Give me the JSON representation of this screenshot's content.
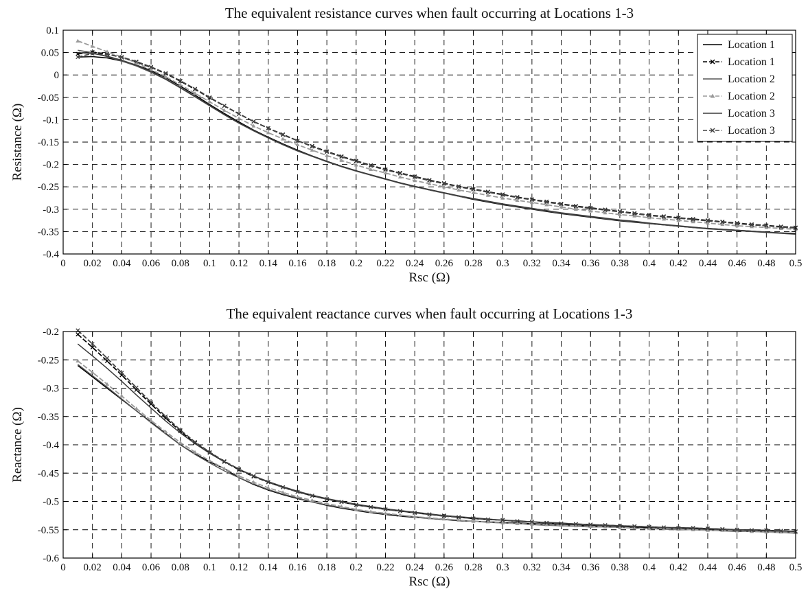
{
  "chart_data": [
    {
      "type": "line",
      "title": "The equivalent resistance curves when fault occurring at Locations 1-3",
      "xlabel": "Rsc (Ω)",
      "ylabel": "Resistance (Ω)",
      "xlim": [
        0,
        0.5
      ],
      "ylim": [
        -0.4,
        0.1
      ],
      "xticks": [
        0,
        0.02,
        0.04,
        0.06,
        0.08,
        0.1,
        0.12,
        0.14,
        0.16,
        0.18,
        0.2,
        0.22,
        0.24,
        0.26,
        0.28,
        0.3,
        0.32,
        0.34,
        0.36,
        0.38,
        0.4,
        0.42,
        0.44,
        0.46,
        0.48,
        0.5
      ],
      "xtick_labels": [
        "0",
        "0.02",
        "0.04",
        "0.06",
        "0.08",
        "0.1",
        "0.12",
        "0.14",
        "0.16",
        "0.18",
        "0.2",
        "0.22",
        "0.24",
        "0.26",
        "0.28",
        "0.3",
        "0.32",
        "0.34",
        "0.36",
        "0.38",
        "0.4",
        "0.42",
        "0.44",
        "0.46",
        "0.48",
        "0.5"
      ],
      "yticks": [
        0.1,
        0.05,
        0,
        -0.05,
        -0.1,
        -0.15,
        -0.2,
        -0.25,
        -0.3,
        -0.35,
        -0.4
      ],
      "ytick_labels": [
        "0.1",
        "0.05",
        "0",
        "-0.05",
        "-0.1",
        "-0.15",
        "-0.2",
        "-0.25",
        "-0.3",
        "-0.35",
        "-0.4"
      ],
      "grid": true,
      "legend_position": "top-right",
      "x": [
        0.01,
        0.02,
        0.03,
        0.04,
        0.05,
        0.06,
        0.07,
        0.08,
        0.09,
        0.1,
        0.11,
        0.12,
        0.13,
        0.14,
        0.15,
        0.16,
        0.17,
        0.18,
        0.19,
        0.2,
        0.21,
        0.22,
        0.23,
        0.24,
        0.25,
        0.26,
        0.27,
        0.28,
        0.29,
        0.3,
        0.31,
        0.32,
        0.33,
        0.34,
        0.35,
        0.36,
        0.37,
        0.38,
        0.39,
        0.4,
        0.41,
        0.42,
        0.43,
        0.44,
        0.45,
        0.46,
        0.47,
        0.48,
        0.49,
        0.5
      ],
      "series": [
        {
          "name": "Location 1",
          "color": "#000000",
          "style": "solid",
          "marker": "none",
          "values": [
            0.04,
            0.041,
            0.038,
            0.031,
            0.022,
            0.01,
            -0.006,
            -0.025,
            -0.045,
            -0.066,
            -0.086,
            -0.105,
            -0.123,
            -0.139,
            -0.154,
            -0.168,
            -0.181,
            -0.193,
            -0.204,
            -0.214,
            -0.224,
            -0.233,
            -0.241,
            -0.249,
            -0.257,
            -0.264,
            -0.271,
            -0.278,
            -0.284,
            -0.29,
            -0.295,
            -0.3,
            -0.305,
            -0.31,
            -0.314,
            -0.318,
            -0.322,
            -0.326,
            -0.329,
            -0.332,
            -0.335,
            -0.338,
            -0.341,
            -0.343,
            -0.345,
            -0.347,
            -0.349,
            -0.351,
            -0.353,
            -0.354
          ]
        },
        {
          "name": "Location 1",
          "color": "#000000",
          "style": "dashed",
          "marker": "x",
          "values": [
            0.047,
            0.051,
            0.047,
            0.039,
            0.029,
            0.017,
            0.003,
            -0.014,
            -0.032,
            -0.051,
            -0.069,
            -0.087,
            -0.104,
            -0.119,
            -0.133,
            -0.147,
            -0.159,
            -0.171,
            -0.182,
            -0.192,
            -0.202,
            -0.211,
            -0.219,
            -0.227,
            -0.235,
            -0.242,
            -0.249,
            -0.255,
            -0.261,
            -0.267,
            -0.273,
            -0.278,
            -0.283,
            -0.288,
            -0.293,
            -0.297,
            -0.301,
            -0.305,
            -0.309,
            -0.313,
            -0.316,
            -0.319,
            -0.322,
            -0.325,
            -0.328,
            -0.331,
            -0.334,
            -0.336,
            -0.339,
            -0.341
          ]
        },
        {
          "name": "Location 2",
          "color": "#555555",
          "style": "solid",
          "marker": "none",
          "values": [
            0.055,
            0.05,
            0.041,
            0.031,
            0.02,
            0.006,
            -0.01,
            -0.029,
            -0.049,
            -0.069,
            -0.089,
            -0.108,
            -0.125,
            -0.141,
            -0.156,
            -0.17,
            -0.182,
            -0.194,
            -0.205,
            -0.215,
            -0.224,
            -0.233,
            -0.242,
            -0.25,
            -0.257,
            -0.264,
            -0.271,
            -0.277,
            -0.283,
            -0.289,
            -0.294,
            -0.299,
            -0.304,
            -0.309,
            -0.313,
            -0.317,
            -0.321,
            -0.325,
            -0.328,
            -0.332,
            -0.335,
            -0.338,
            -0.341,
            -0.344,
            -0.346,
            -0.348,
            -0.35,
            -0.352,
            -0.354,
            -0.356
          ]
        },
        {
          "name": "Location 2",
          "color": "#9a9a9a",
          "style": "dashed",
          "marker": "triangle",
          "values": [
            0.076,
            0.064,
            0.052,
            0.04,
            0.027,
            0.012,
            -0.004,
            -0.022,
            -0.041,
            -0.06,
            -0.079,
            -0.097,
            -0.114,
            -0.129,
            -0.143,
            -0.156,
            -0.168,
            -0.18,
            -0.191,
            -0.201,
            -0.211,
            -0.219,
            -0.228,
            -0.236,
            -0.243,
            -0.25,
            -0.257,
            -0.263,
            -0.269,
            -0.275,
            -0.28,
            -0.285,
            -0.29,
            -0.295,
            -0.3,
            -0.304,
            -0.308,
            -0.312,
            -0.315,
            -0.319,
            -0.322,
            -0.325,
            -0.328,
            -0.331,
            -0.334,
            -0.337,
            -0.339,
            -0.341,
            -0.343,
            -0.345
          ]
        },
        {
          "name": "Location 3",
          "color": "#3a3a3a",
          "style": "solid",
          "marker": "none",
          "values": [
            0.05,
            0.048,
            0.042,
            0.033,
            0.022,
            0.008,
            -0.009,
            -0.028,
            -0.048,
            -0.068,
            -0.088,
            -0.107,
            -0.124,
            -0.14,
            -0.155,
            -0.169,
            -0.181,
            -0.193,
            -0.204,
            -0.214,
            -0.223,
            -0.232,
            -0.241,
            -0.249,
            -0.256,
            -0.263,
            -0.27,
            -0.276,
            -0.282,
            -0.288,
            -0.293,
            -0.298,
            -0.303,
            -0.308,
            -0.312,
            -0.316,
            -0.32,
            -0.324,
            -0.327,
            -0.331,
            -0.334,
            -0.337,
            -0.34,
            -0.343,
            -0.345,
            -0.347,
            -0.349,
            -0.351,
            -0.353,
            -0.355
          ]
        },
        {
          "name": "Location 3",
          "color": "#444444",
          "style": "dashed",
          "marker": "x",
          "values": [
            0.04,
            0.048,
            0.046,
            0.04,
            0.03,
            0.018,
            0.004,
            -0.013,
            -0.031,
            -0.05,
            -0.069,
            -0.087,
            -0.104,
            -0.119,
            -0.134,
            -0.147,
            -0.16,
            -0.172,
            -0.183,
            -0.193,
            -0.203,
            -0.212,
            -0.22,
            -0.228,
            -0.236,
            -0.243,
            -0.25,
            -0.256,
            -0.262,
            -0.268,
            -0.274,
            -0.279,
            -0.284,
            -0.289,
            -0.294,
            -0.298,
            -0.302,
            -0.306,
            -0.31,
            -0.314,
            -0.317,
            -0.32,
            -0.323,
            -0.326,
            -0.329,
            -0.332,
            -0.335,
            -0.337,
            -0.34,
            -0.342
          ]
        }
      ]
    },
    {
      "type": "line",
      "title": "The equivalent reactance curves when fault occurring at Locations 1-3",
      "xlabel": "Rsc (Ω)",
      "ylabel": "Reactance (Ω)",
      "xlim": [
        0,
        0.5
      ],
      "ylim": [
        -0.6,
        -0.2
      ],
      "xticks": [
        0,
        0.02,
        0.04,
        0.06,
        0.08,
        0.1,
        0.12,
        0.14,
        0.16,
        0.18,
        0.2,
        0.22,
        0.24,
        0.26,
        0.28,
        0.3,
        0.32,
        0.34,
        0.36,
        0.38,
        0.4,
        0.42,
        0.44,
        0.46,
        0.48,
        0.5
      ],
      "xtick_labels": [
        "0",
        "0.02",
        "0.04",
        "0.06",
        "0.08",
        "0.1",
        "0.12",
        "0.14",
        "0.16",
        "0.18",
        "0.2",
        "0.22",
        "0.24",
        "0.26",
        "0.28",
        "0.3",
        "0.32",
        "0.34",
        "0.36",
        "0.38",
        "0.4",
        "0.42",
        "0.44",
        "0.46",
        "0.48",
        "0.5"
      ],
      "yticks": [
        -0.2,
        -0.25,
        -0.3,
        -0.35,
        -0.4,
        -0.45,
        -0.5,
        -0.55,
        -0.6
      ],
      "ytick_labels": [
        "-0.2",
        "-0.25",
        "-0.3",
        "-0.35",
        "-0.4",
        "-0.45",
        "-0.5",
        "-0.55",
        "-0.6"
      ],
      "grid": true,
      "x": [
        0.01,
        0.02,
        0.03,
        0.04,
        0.05,
        0.06,
        0.07,
        0.08,
        0.09,
        0.1,
        0.11,
        0.12,
        0.13,
        0.14,
        0.15,
        0.16,
        0.17,
        0.18,
        0.19,
        0.2,
        0.21,
        0.22,
        0.23,
        0.24,
        0.25,
        0.26,
        0.27,
        0.28,
        0.29,
        0.3,
        0.31,
        0.32,
        0.33,
        0.34,
        0.35,
        0.36,
        0.37,
        0.38,
        0.39,
        0.4,
        0.41,
        0.42,
        0.43,
        0.44,
        0.45,
        0.46,
        0.47,
        0.48,
        0.49,
        0.5
      ],
      "series": [
        {
          "name": "Location 1",
          "color": "#000000",
          "style": "solid",
          "marker": "none",
          "values": [
            -0.26,
            -0.28,
            -0.3,
            -0.32,
            -0.34,
            -0.36,
            -0.38,
            -0.4,
            -0.416,
            -0.43,
            -0.442,
            -0.458,
            -0.47,
            -0.48,
            -0.488,
            -0.495,
            -0.501,
            -0.507,
            -0.512,
            -0.516,
            -0.52,
            -0.523,
            -0.526,
            -0.528,
            -0.53,
            -0.532,
            -0.534,
            -0.535,
            -0.536,
            -0.537,
            -0.538,
            -0.539,
            -0.54,
            -0.541,
            -0.542,
            -0.543,
            -0.544,
            -0.545,
            -0.546,
            -0.546,
            -0.547,
            -0.548,
            -0.549,
            -0.549,
            -0.55,
            -0.551,
            -0.552,
            -0.552,
            -0.553,
            -0.554
          ]
        },
        {
          "name": "Location 1",
          "color": "#000000",
          "style": "dashed",
          "marker": "x",
          "values": [
            -0.205,
            -0.228,
            -0.252,
            -0.277,
            -0.303,
            -0.328,
            -0.353,
            -0.376,
            -0.397,
            -0.414,
            -0.43,
            -0.444,
            -0.456,
            -0.466,
            -0.475,
            -0.483,
            -0.49,
            -0.496,
            -0.501,
            -0.506,
            -0.51,
            -0.514,
            -0.517,
            -0.52,
            -0.523,
            -0.525,
            -0.528,
            -0.53,
            -0.532,
            -0.533,
            -0.535,
            -0.536,
            -0.538,
            -0.539,
            -0.54,
            -0.541,
            -0.542,
            -0.543,
            -0.544,
            -0.545,
            -0.546,
            -0.547,
            -0.547,
            -0.548,
            -0.549,
            -0.55,
            -0.551,
            -0.551,
            -0.552,
            -0.553
          ]
        },
        {
          "name": "Location 2",
          "color": "#555555",
          "style": "solid",
          "marker": "none",
          "values": [
            -0.258,
            -0.278,
            -0.298,
            -0.319,
            -0.34,
            -0.361,
            -0.381,
            -0.4,
            -0.417,
            -0.432,
            -0.446,
            -0.458,
            -0.469,
            -0.479,
            -0.487,
            -0.494,
            -0.501,
            -0.506,
            -0.511,
            -0.515,
            -0.519,
            -0.522,
            -0.525,
            -0.527,
            -0.53,
            -0.532,
            -0.533,
            -0.535,
            -0.537,
            -0.538,
            -0.539,
            -0.541,
            -0.542,
            -0.543,
            -0.544,
            -0.545,
            -0.545,
            -0.546,
            -0.547,
            -0.548,
            -0.549,
            -0.55,
            -0.55,
            -0.551,
            -0.552,
            -0.553,
            -0.553,
            -0.554,
            -0.555,
            -0.556
          ]
        },
        {
          "name": "Location 2",
          "color": "#9a9a9a",
          "style": "dashed",
          "marker": "triangle",
          "values": [
            -0.252,
            -0.272,
            -0.293,
            -0.314,
            -0.336,
            -0.357,
            -0.377,
            -0.396,
            -0.413,
            -0.428,
            -0.442,
            -0.455,
            -0.466,
            -0.476,
            -0.484,
            -0.492,
            -0.498,
            -0.504,
            -0.509,
            -0.514,
            -0.518,
            -0.521,
            -0.524,
            -0.527,
            -0.529,
            -0.531,
            -0.533,
            -0.535,
            -0.536,
            -0.538,
            -0.539,
            -0.54,
            -0.541,
            -0.542,
            -0.543,
            -0.544,
            -0.545,
            -0.546,
            -0.547,
            -0.548,
            -0.548,
            -0.549,
            -0.55,
            -0.551,
            -0.551,
            -0.552,
            -0.553,
            -0.554,
            -0.554,
            -0.555
          ]
        },
        {
          "name": "Location 3",
          "color": "#3a3a3a",
          "style": "solid",
          "marker": "none",
          "values": [
            -0.222,
            -0.243,
            -0.265,
            -0.288,
            -0.312,
            -0.335,
            -0.358,
            -0.379,
            -0.398,
            -0.415,
            -0.43,
            -0.443,
            -0.455,
            -0.465,
            -0.474,
            -0.482,
            -0.489,
            -0.495,
            -0.5,
            -0.505,
            -0.509,
            -0.513,
            -0.516,
            -0.519,
            -0.522,
            -0.525,
            -0.527,
            -0.529,
            -0.531,
            -0.533,
            -0.534,
            -0.536,
            -0.537,
            -0.538,
            -0.54,
            -0.541,
            -0.542,
            -0.543,
            -0.544,
            -0.545,
            -0.546,
            -0.546,
            -0.547,
            -0.548,
            -0.549,
            -0.55,
            -0.55,
            -0.551,
            -0.552,
            -0.553
          ]
        },
        {
          "name": "Location 3",
          "color": "#444444",
          "style": "dashed",
          "marker": "x",
          "values": [
            -0.198,
            -0.222,
            -0.247,
            -0.273,
            -0.299,
            -0.325,
            -0.35,
            -0.374,
            -0.395,
            -0.413,
            -0.429,
            -0.443,
            -0.455,
            -0.466,
            -0.475,
            -0.483,
            -0.49,
            -0.496,
            -0.501,
            -0.506,
            -0.51,
            -0.514,
            -0.517,
            -0.52,
            -0.523,
            -0.526,
            -0.528,
            -0.53,
            -0.532,
            -0.533,
            -0.535,
            -0.536,
            -0.538,
            -0.539,
            -0.54,
            -0.541,
            -0.542,
            -0.543,
            -0.544,
            -0.545,
            -0.546,
            -0.547,
            -0.547,
            -0.548,
            -0.549,
            -0.55,
            -0.551,
            -0.551,
            -0.552,
            -0.553
          ]
        }
      ]
    }
  ]
}
